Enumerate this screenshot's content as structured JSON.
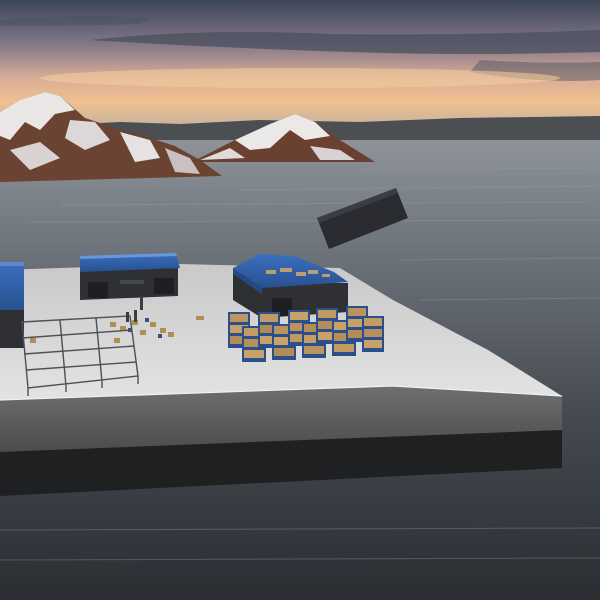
{
  "scene": {
    "kind": "3d-simulation-viewport",
    "description_free": true,
    "elements": {
      "sky": {
        "colors": [
          "#3d4a5e",
          "#8a7f8a",
          "#e2b79a",
          "#f3c58f",
          "#9aa3ad"
        ]
      },
      "water": {
        "colors": [
          "#8a9096",
          "#5e646b",
          "#3a3f45",
          "#2a2e33"
        ]
      },
      "mountains": {
        "count": 2,
        "snow_color": "#e9e6e6",
        "rock_color": "#6b3f2f"
      },
      "platform": {
        "top_color": "#d6d6d6",
        "side_color": "#5c5e60",
        "base_color": "#1f2022"
      },
      "warehouses": {
        "count": 3,
        "roof_color": "#2f5fa8",
        "wall_color": "#2f3033"
      },
      "shelf_racks": {
        "count": 10,
        "goods_color": "#b9935e",
        "frame_color": "#1f3f7a"
      },
      "floating_container": {
        "color": "#2b2d33"
      },
      "fence": {
        "color": "#4e5156"
      }
    }
  }
}
